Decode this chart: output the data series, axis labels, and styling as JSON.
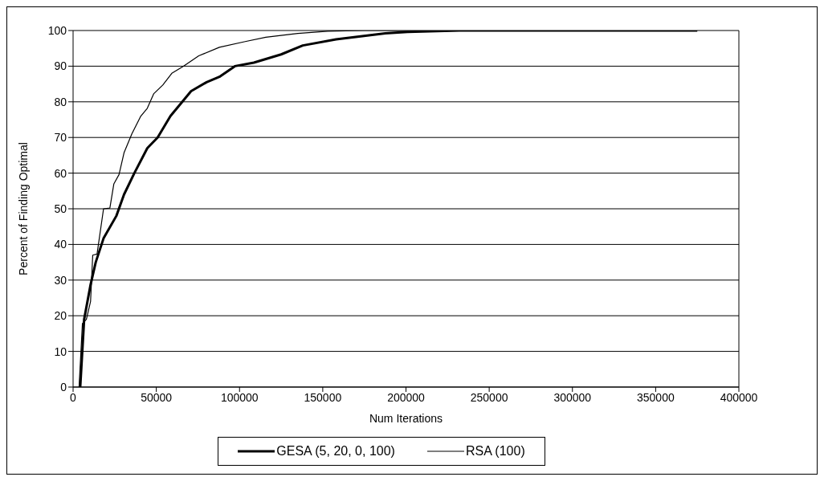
{
  "chart_data": {
    "type": "line",
    "xlabel": "Num Iterations",
    "ylabel": "Percent of Finding Optimal",
    "xlim": [
      0,
      400000
    ],
    "xticks": [
      0,
      50000,
      100000,
      150000,
      200000,
      250000,
      300000,
      350000,
      400000
    ],
    "ylim": [
      0,
      100
    ],
    "yticks": [
      0,
      10,
      20,
      30,
      40,
      50,
      60,
      70,
      80,
      90,
      100
    ],
    "grid": "y",
    "legend": "bottom",
    "marker": "none",
    "line_style": "solid",
    "series": [
      {
        "name": "GESA (5, 20, 0, 100)",
        "color": "#000000",
        "x": [
          4300,
          6650,
          10500,
          13600,
          18300,
          26000,
          30600,
          36800,
          44600,
          50800,
          58500,
          64700,
          70900,
          80200,
          87900,
          97200,
          108600,
          125000,
          138000,
          158000,
          187600,
          201000,
          232000,
          375000
        ],
        "values": [
          0,
          19,
          28.7,
          35,
          41.7,
          48,
          54,
          60,
          67,
          70,
          76,
          79.5,
          83,
          85.5,
          87,
          90,
          91,
          93.3,
          95.8,
          97.5,
          99.2,
          99.6,
          100,
          100
        ]
      },
      {
        "name": "RSA (100)",
        "color": "#000000",
        "x": [
          3600,
          5600,
          8000,
          10500,
          11800,
          14400,
          18300,
          22100,
          24500,
          27600,
          30600,
          35300,
          40700,
          44600,
          48500,
          53900,
          59300,
          66300,
          75500,
          87900,
          103400,
          115800,
          135000,
          153000,
          175000,
          375000
        ],
        "values": [
          0,
          17.8,
          19,
          24,
          37,
          37.3,
          50,
          50.2,
          57,
          59.6,
          65.7,
          71,
          76,
          78.2,
          82.3,
          84.7,
          88,
          90,
          92.9,
          95.3,
          96.9,
          98.1,
          99.2,
          99.8,
          100,
          100
        ]
      }
    ]
  }
}
